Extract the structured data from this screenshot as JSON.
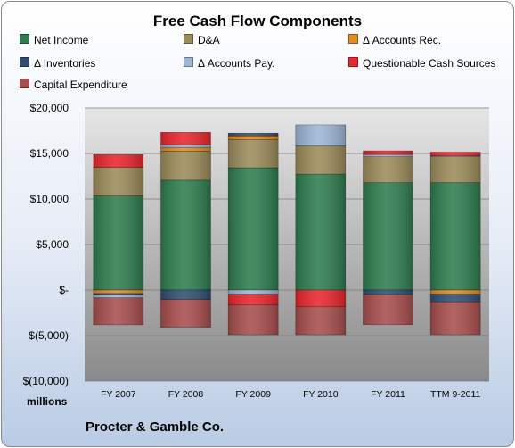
{
  "chart_data": {
    "type": "bar",
    "stacked": true,
    "title": "Free Cash Flow Components",
    "company": "Procter & Gamble Co.",
    "units": "millions",
    "categories": [
      "FY 2007",
      "FY 2008",
      "FY 2009",
      "FY 2010",
      "FY 2011",
      "TTM 9-2011"
    ],
    "ylim": [
      -10000,
      20000
    ],
    "yticks": [
      {
        "value": 20000,
        "label": "$20,000"
      },
      {
        "value": 15000,
        "label": "$15,000"
      },
      {
        "value": 10000,
        "label": "$10,000"
      },
      {
        "value": 5000,
        "label": "$5,000"
      },
      {
        "value": 0,
        "label": "$-"
      },
      {
        "value": -5000,
        "label": "$(5,000)"
      },
      {
        "value": -10000,
        "label": "$(10,000)"
      }
    ],
    "grid": true,
    "legend_position": "top",
    "series": [
      {
        "name": "Net Income",
        "color": "#2e7d4f",
        "values": [
          10340,
          12075,
          13436,
          12736,
          11797,
          11800
        ]
      },
      {
        "name": "D&A",
        "color": "#9c8c5a",
        "values": [
          3130,
          3166,
          3082,
          3108,
          2838,
          2850
        ]
      },
      {
        "name": "Δ Accounts Rec.",
        "color": "#e48a1e",
        "values": [
          -385,
          432,
          415,
          0,
          0,
          -450
        ]
      },
      {
        "name": "Δ Inventories",
        "color": "#2f4f70",
        "values": [
          -175,
          -1050,
          300,
          0,
          -500,
          -850
        ]
      },
      {
        "name": "Δ Accounts Pay.",
        "color": "#9db6d6",
        "values": [
          -300,
          300,
          -450,
          2300,
          250,
          100
        ]
      },
      {
        "name": "Questionable Cash Sources",
        "color": "#e8262d",
        "values": [
          1400,
          1350,
          -1200,
          -1850,
          400,
          400
        ]
      },
      {
        "name": "Capital Expenditure",
        "color": "#a84e4e",
        "values": [
          -2950,
          -3050,
          -3250,
          -3050,
          -3300,
          -3600
        ]
      }
    ]
  }
}
